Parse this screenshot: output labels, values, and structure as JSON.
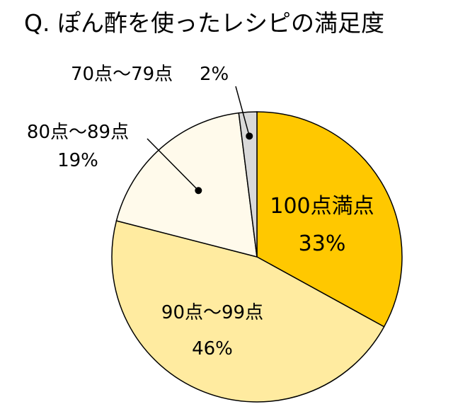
{
  "chart_data": {
    "type": "pie",
    "title": "Q. ぽん酢を使ったレシピの満足度",
    "categories": [
      "100点満点",
      "90点～99点",
      "80点～89点",
      "70点～79点"
    ],
    "values": [
      33,
      46,
      19,
      2
    ],
    "value_labels": [
      "33%",
      "46%",
      "19%",
      "2%"
    ],
    "unit": "%",
    "start": "12 o'clock",
    "direction": "clockwise",
    "colors": [
      "#FFC800",
      "#FFEBA0",
      "#FFFAEB",
      "#D9D9D9"
    ],
    "outline_color": "#000000"
  }
}
